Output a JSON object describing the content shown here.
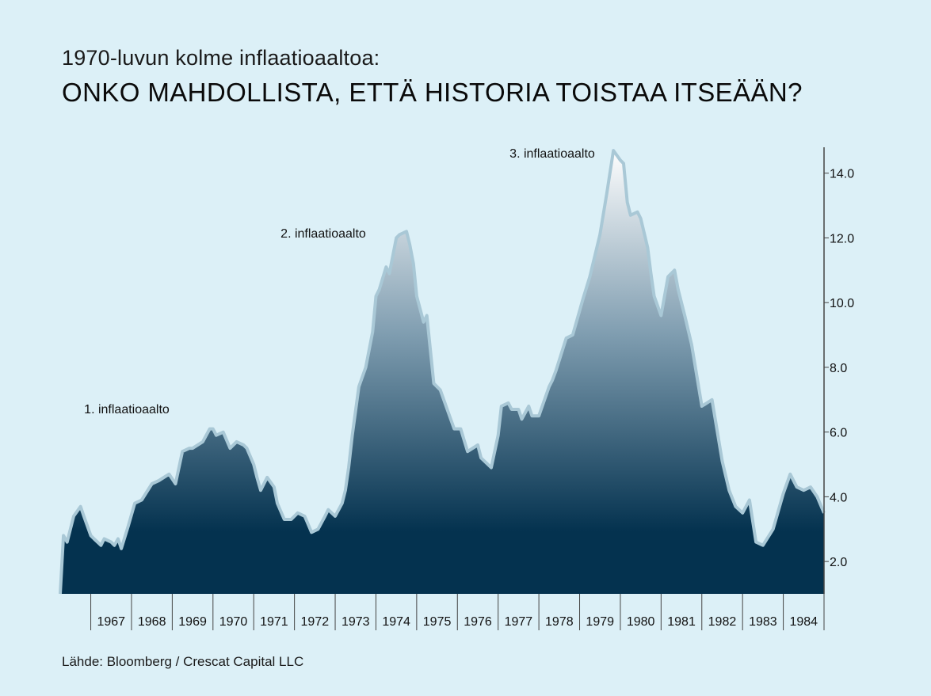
{
  "header": {
    "subtitle": "1970-luvun kolme inflaatioaaltoa:",
    "title": "ONKO MAHDOLLISTA, ETTÄ HISTORIA TOISTAA ITSEÄÄN?"
  },
  "source": "Lähde: Bloomberg / Crescat Capital LLC",
  "colors": {
    "background": "#dcf0f7",
    "area_top": "#ffffff",
    "area_mid": "#7f9db0",
    "area_bottom": "#04324f",
    "outline": "#a9c8d6",
    "axis": "#444444"
  },
  "chart_data": {
    "type": "area",
    "title": "",
    "xlabel": "",
    "ylabel": "",
    "x_tick_labels": [
      "1967",
      "1968",
      "1969",
      "1970",
      "1971",
      "1972",
      "1973",
      "1974",
      "1975",
      "1976",
      "1977",
      "1978",
      "1979",
      "1980",
      "1981",
      "1982",
      "1983",
      "1984"
    ],
    "y_ticks": [
      "2.0",
      "4.0",
      "6.0",
      "8.0",
      "10.0",
      "12.0",
      "14.0"
    ],
    "xlim": [
      1966.25,
      1985.0
    ],
    "ylim": [
      1.0,
      14.8
    ],
    "y_axis_side": "right",
    "annotations": [
      {
        "text": "1. inflaatioaalto",
        "x": 1969.4,
        "y": 6.1
      },
      {
        "text": "2. inflaatioaalto",
        "x": 1974.9,
        "y": 12.3
      },
      {
        "text": "3. inflaatioaalto",
        "x": 1980.9,
        "y": 14.7
      }
    ],
    "series": [
      {
        "x": [
          1966.25,
          1966.33,
          1966.42,
          1966.58,
          1966.75,
          1966.83,
          1967.0,
          1967.08,
          1967.25,
          1967.33,
          1967.5,
          1967.58,
          1967.67,
          1967.75,
          1967.92,
          1968.08,
          1968.25,
          1968.5,
          1968.67,
          1968.92,
          1969.08,
          1969.25,
          1969.42,
          1969.5,
          1969.75,
          1969.92,
          1970.0,
          1970.08,
          1970.25,
          1970.42,
          1970.58,
          1970.75,
          1970.83,
          1971.0,
          1971.08,
          1971.17,
          1971.33,
          1971.5,
          1971.58,
          1971.75,
          1971.92,
          1972.08,
          1972.25,
          1972.42,
          1972.58,
          1972.75,
          1972.83,
          1973.0,
          1973.17,
          1973.25,
          1973.33,
          1973.42,
          1973.58,
          1973.75,
          1973.92,
          1974.0,
          1974.08,
          1974.25,
          1974.33,
          1974.5,
          1974.58,
          1974.75,
          1974.83,
          1974.92,
          1975.0,
          1975.17,
          1975.25,
          1975.42,
          1975.58,
          1975.75,
          1975.92,
          1976.08,
          1976.25,
          1976.5,
          1976.58,
          1976.83,
          1977.0,
          1977.08,
          1977.25,
          1977.33,
          1977.5,
          1977.58,
          1977.75,
          1977.83,
          1978.0,
          1978.25,
          1978.33,
          1978.42,
          1978.67,
          1978.83,
          1979.08,
          1979.25,
          1979.5,
          1979.67,
          1979.83,
          1980.0,
          1980.08,
          1980.17,
          1980.25,
          1980.42,
          1980.5,
          1980.67,
          1980.75,
          1980.83,
          1981.0,
          1981.17,
          1981.33,
          1981.42,
          1981.58,
          1981.75,
          1982.0,
          1982.25,
          1982.5,
          1982.67,
          1982.83,
          1983.0,
          1983.17,
          1983.33,
          1983.5,
          1983.75,
          1984.0,
          1984.17,
          1984.33,
          1984.5,
          1984.67,
          1984.83,
          1985.0
        ],
        "values": [
          1.0,
          2.8,
          2.6,
          3.4,
          3.7,
          3.4,
          2.8,
          2.7,
          2.5,
          2.7,
          2.6,
          2.5,
          2.7,
          2.4,
          3.1,
          3.8,
          3.9,
          4.4,
          4.5,
          4.7,
          4.4,
          5.4,
          5.5,
          5.5,
          5.7,
          6.1,
          6.1,
          5.9,
          6.0,
          5.5,
          5.7,
          5.6,
          5.5,
          5.0,
          4.6,
          4.2,
          4.6,
          4.3,
          3.8,
          3.3,
          3.3,
          3.5,
          3.4,
          2.9,
          3.0,
          3.4,
          3.6,
          3.4,
          3.8,
          4.2,
          4.9,
          5.9,
          7.4,
          8.0,
          9.1,
          10.2,
          10.4,
          11.1,
          10.9,
          12.0,
          12.1,
          12.2,
          11.8,
          11.2,
          10.2,
          9.4,
          9.6,
          7.5,
          7.3,
          6.7,
          6.1,
          6.1,
          5.4,
          5.6,
          5.2,
          4.9,
          5.9,
          6.8,
          6.9,
          6.7,
          6.7,
          6.4,
          6.8,
          6.5,
          6.5,
          7.4,
          7.6,
          7.9,
          8.9,
          9.0,
          10.1,
          10.8,
          12.1,
          13.4,
          14.7,
          14.4,
          14.3,
          13.1,
          12.7,
          12.8,
          12.6,
          11.7,
          10.9,
          10.2,
          9.6,
          10.8,
          11.0,
          10.4,
          9.6,
          8.7,
          6.8,
          7.0,
          5.1,
          4.2,
          3.7,
          3.5,
          3.9,
          2.6,
          2.5,
          3.0,
          4.1,
          4.7,
          4.3,
          4.2,
          4.3,
          4.0,
          3.5
        ]
      }
    ],
    "grid": false,
    "legend": "none"
  }
}
